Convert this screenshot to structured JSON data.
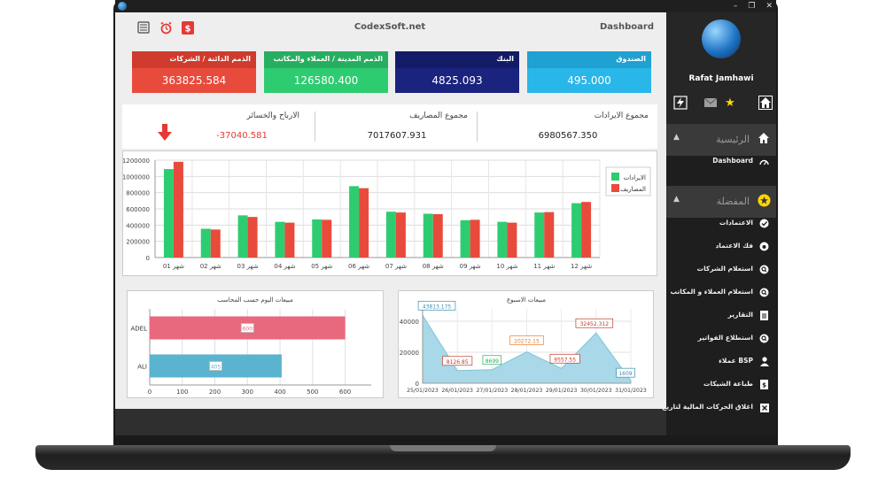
{
  "window": {
    "title": "CodexSoft.net",
    "page": "Dashboard"
  },
  "colors": {
    "red": "#e84b3c",
    "green": "#2ecc71",
    "navy": "#1a237e",
    "sky": "#29b6e8",
    "income": "#2ecc71",
    "expense": "#e84b3c"
  },
  "cards": [
    {
      "label": "الذمم الدائنة / الشركات",
      "value": "363825.584"
    },
    {
      "label": "الذمم المدينة / العملاء والمكاتب",
      "value": "126580.400"
    },
    {
      "label": "البنك",
      "value": "4825.093"
    },
    {
      "label": "الصندوق",
      "value": "495.000"
    }
  ],
  "totals": {
    "profit_label": "الارباح والخسائر",
    "profit_value": "-37040.581",
    "expenses_label": "مجموع المصاريف",
    "expenses_value": "7017607.931",
    "revenue_label": "مجموع الايرادات",
    "revenue_value": "6980567.350"
  },
  "chart_data": [
    {
      "type": "bar",
      "categories": [
        "شهر 01",
        "شهر 02",
        "شهر 03",
        "شهر 04",
        "شهر 05",
        "شهر 06",
        "شهر 07",
        "شهر 08",
        "شهر 09",
        "شهر 10",
        "شهر 11",
        "شهر 12"
      ],
      "series": [
        {
          "name": "الايرادات",
          "values": [
            1090000,
            355000,
            520000,
            440000,
            470000,
            880000,
            565000,
            540000,
            460000,
            440000,
            555000,
            670000
          ]
        },
        {
          "name": "المصاريف",
          "values": [
            1180000,
            345000,
            500000,
            430000,
            465000,
            855000,
            555000,
            535000,
            465000,
            430000,
            560000,
            685000
          ]
        }
      ],
      "yticks": [
        "0",
        "200000",
        "400000",
        "600000",
        "800000",
        "1000000",
        "1200000"
      ],
      "ylim": [
        0,
        1200000
      ],
      "legend": "top-right"
    },
    {
      "type": "area",
      "title": "مبيعات الاسبوع",
      "x": [
        "25/01/2023",
        "26/01/2023",
        "27/01/2023",
        "28/01/2023",
        "29/01/2023",
        "30/01/2023",
        "31/01/2023"
      ],
      "values": [
        43813.175,
        8126.85,
        8699,
        20272.15,
        9557.55,
        32452.312,
        1609
      ],
      "labels": [
        "43813.175",
        "8126.85",
        "8699",
        "20272.15",
        "9557.55",
        "32452.312",
        "1609"
      ],
      "yticks": [
        "0",
        "20000",
        "40000"
      ],
      "ylim": [
        0,
        48000
      ]
    },
    {
      "type": "bar",
      "title": "مبيعات اليوم حسب المحاسب",
      "categories": [
        "ADEL",
        "ALI"
      ],
      "values": [
        600,
        405
      ],
      "labels": [
        "600",
        "405"
      ],
      "xticks": [
        "0",
        "100",
        "200",
        "300",
        "400",
        "500",
        "600"
      ],
      "xlim": [
        0,
        680
      ]
    }
  ],
  "sidebar": {
    "user": "Rafat Jamhawi",
    "home_section": "الرئيسية",
    "dashboard_item": "Dashboard",
    "fav_section": "المفضلة",
    "items": [
      "الاعتمادات",
      "فك الاعتماد",
      "استعلام الشركات",
      "استعلام العملاء و المكاتب",
      "التقارير",
      "استطلاع الفواتير",
      "عملاء BSP",
      "طباعة الشيكات",
      "اغلاق الحركات المالية لتاريخ"
    ]
  }
}
